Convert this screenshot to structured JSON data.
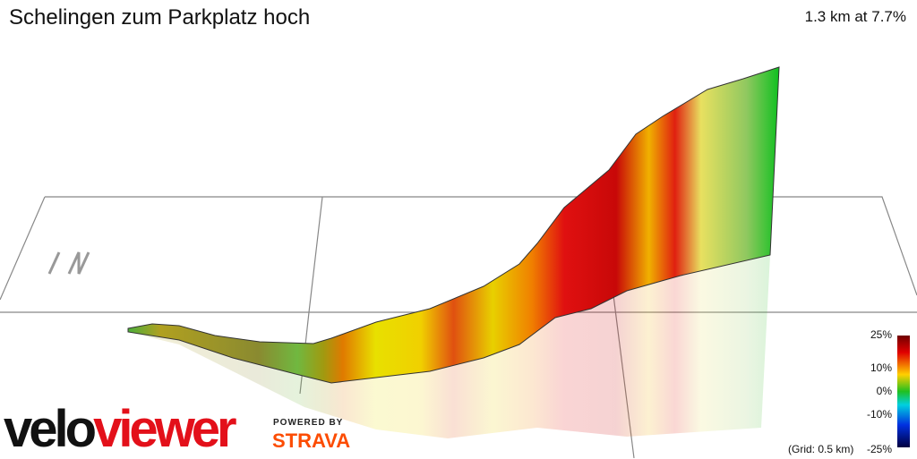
{
  "header": {
    "title": "Schelingen zum Parkplatz hoch",
    "summary": "1.3 km at 7.7%"
  },
  "compass": "↑N",
  "legend": {
    "labels": [
      "25%",
      "10%",
      "0%",
      "-10%",
      "-25%"
    ],
    "grid_note": "(Grid: 0.5 km)"
  },
  "branding": {
    "logo_left": "velo",
    "logo_right": "viewer",
    "powered_by": "POWERED BY",
    "partner": "STRAVA"
  }
}
